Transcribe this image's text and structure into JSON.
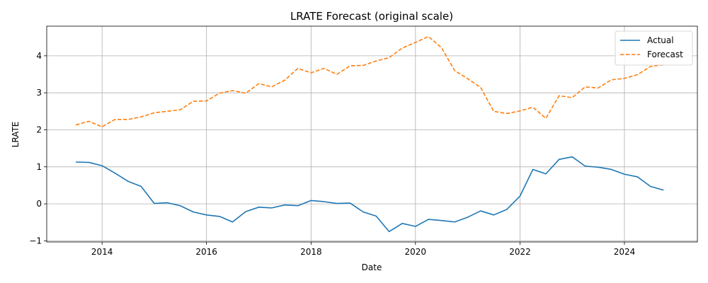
{
  "chart_data": {
    "type": "line",
    "title": "LRATE Forecast (original scale)",
    "xlabel": "Date",
    "ylabel": "LRATE",
    "xlim": [
      "2012-12-10",
      "2025-05-25"
    ],
    "ylim": [
      -1.03,
      4.8
    ],
    "x_ticks": [
      "2014",
      "2016",
      "2018",
      "2020",
      "2022",
      "2024"
    ],
    "y_ticks": [
      "−1",
      "0",
      "1",
      "2",
      "3",
      "4"
    ],
    "grid": true,
    "legend_position": "top-right",
    "x": [
      "2013-07-01",
      "2013-10-01",
      "2014-01-01",
      "2014-04-01",
      "2014-07-01",
      "2014-10-01",
      "2015-01-01",
      "2015-04-01",
      "2015-07-01",
      "2015-10-01",
      "2016-01-01",
      "2016-04-01",
      "2016-07-01",
      "2016-10-01",
      "2017-01-01",
      "2017-04-01",
      "2017-07-01",
      "2017-10-01",
      "2018-01-01",
      "2018-04-01",
      "2018-07-01",
      "2018-10-01",
      "2019-01-01",
      "2019-04-01",
      "2019-07-01",
      "2019-10-01",
      "2020-01-01",
      "2020-04-01",
      "2020-07-01",
      "2020-10-01",
      "2021-01-01",
      "2021-04-01",
      "2021-07-01",
      "2021-10-01",
      "2022-01-01",
      "2022-04-01",
      "2022-07-01",
      "2022-10-01",
      "2023-01-01",
      "2023-04-01",
      "2023-07-01",
      "2023-10-01",
      "2024-01-01",
      "2024-04-01",
      "2024-07-01",
      "2024-10-01"
    ],
    "series": [
      {
        "name": "Actual",
        "color": "#1f77b4",
        "style": "solid",
        "values": [
          1.13,
          1.12,
          1.03,
          0.83,
          0.61,
          0.47,
          0.01,
          0.03,
          -0.05,
          -0.22,
          -0.3,
          -0.34,
          -0.49,
          -0.21,
          -0.09,
          -0.11,
          -0.03,
          -0.05,
          0.09,
          0.06,
          0.01,
          0.02,
          -0.22,
          -0.33,
          -0.75,
          -0.53,
          -0.61,
          -0.42,
          -0.45,
          -0.49,
          -0.36,
          -0.19,
          -0.3,
          -0.15,
          0.21,
          0.93,
          0.81,
          1.2,
          1.27,
          1.02,
          0.99,
          0.93,
          0.8,
          0.73,
          0.47,
          0.37
        ]
      },
      {
        "name": "Forecast",
        "color": "#ff7f0e",
        "style": "dashed",
        "values": [
          2.13,
          2.23,
          2.08,
          2.28,
          2.28,
          2.35,
          2.46,
          2.5,
          2.54,
          2.77,
          2.78,
          2.99,
          3.06,
          2.99,
          3.25,
          3.16,
          3.34,
          3.66,
          3.54,
          3.66,
          3.5,
          3.73,
          3.74,
          3.86,
          3.95,
          4.21,
          4.36,
          4.52,
          4.22,
          3.6,
          3.38,
          3.14,
          2.5,
          2.44,
          2.51,
          2.61,
          2.31,
          2.92,
          2.87,
          3.16,
          3.13,
          3.35,
          3.39,
          3.49,
          3.71,
          3.76
        ]
      }
    ]
  }
}
